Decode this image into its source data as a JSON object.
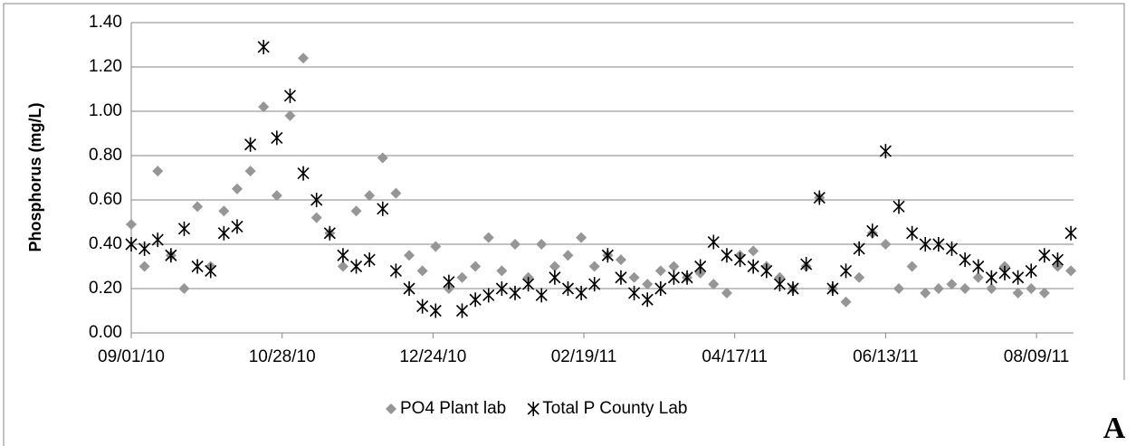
{
  "chart_data": {
    "type": "scatter",
    "ylabel": "Phosphorus (mg/L)",
    "x": [
      "09/01/10",
      "09/06/10",
      "09/11/10",
      "09/16/10",
      "09/21/10",
      "09/26/10",
      "10/01/10",
      "10/06/10",
      "10/11/10",
      "10/16/10",
      "10/21/10",
      "10/26/10",
      "10/31/10",
      "11/05/10",
      "11/10/10",
      "11/15/10",
      "11/20/10",
      "11/25/10",
      "11/30/10",
      "12/05/10",
      "12/10/10",
      "12/15/10",
      "12/20/10",
      "12/25/10",
      "12/30/10",
      "01/04/11",
      "01/09/11",
      "01/14/11",
      "01/19/11",
      "01/24/11",
      "01/29/11",
      "02/03/11",
      "02/08/11",
      "02/13/11",
      "02/18/11",
      "02/23/11",
      "02/28/11",
      "03/05/11",
      "03/10/11",
      "03/15/11",
      "03/20/11",
      "03/25/11",
      "03/30/11",
      "04/04/11",
      "04/09/11",
      "04/14/11",
      "04/19/11",
      "04/24/11",
      "04/29/11",
      "05/04/11",
      "05/09/11",
      "05/14/11",
      "05/19/11",
      "05/24/11",
      "05/29/11",
      "06/03/11",
      "06/08/11",
      "06/13/11",
      "06/18/11",
      "06/23/11",
      "06/28/11",
      "07/03/11",
      "07/08/11",
      "07/13/11",
      "07/18/11",
      "07/23/11",
      "07/28/11",
      "08/02/11",
      "08/07/11",
      "08/12/11",
      "08/17/11",
      "08/22/11"
    ],
    "series": [
      {
        "name": "PO4 Plant lab",
        "color": "#969696",
        "marker": "diamond",
        "values": [
          0.49,
          0.3,
          0.73,
          0.35,
          0.2,
          0.57,
          0.3,
          0.55,
          0.65,
          0.73,
          1.02,
          0.62,
          0.98,
          1.24,
          0.52,
          0.45,
          0.3,
          0.55,
          0.62,
          0.79,
          0.63,
          0.35,
          0.28,
          0.39,
          0.2,
          0.25,
          0.3,
          0.43,
          0.28,
          0.4,
          0.25,
          0.4,
          0.3,
          0.35,
          0.43,
          0.3,
          0.35,
          0.33,
          0.25,
          0.22,
          0.28,
          0.3,
          0.25,
          0.27,
          0.22,
          0.18,
          0.35,
          0.37,
          0.3,
          0.25,
          0.2,
          0.3,
          0.61,
          0.2,
          0.14,
          0.25,
          0.45,
          0.4,
          0.2,
          0.3,
          0.18,
          0.2,
          0.22,
          0.2,
          0.25,
          0.2,
          0.3,
          0.18,
          0.2,
          0.18,
          0.3,
          0.28
        ]
      },
      {
        "name": "Total P County Lab",
        "color": "#000000",
        "marker": "asterisk",
        "values": [
          0.4,
          0.38,
          0.42,
          0.35,
          0.47,
          0.3,
          0.28,
          0.45,
          0.48,
          0.85,
          1.29,
          0.88,
          1.07,
          0.72,
          0.6,
          0.45,
          0.35,
          0.3,
          0.33,
          0.56,
          0.28,
          0.2,
          0.12,
          0.1,
          0.23,
          0.1,
          0.15,
          0.17,
          0.2,
          0.18,
          0.22,
          0.17,
          0.25,
          0.2,
          0.18,
          0.22,
          0.35,
          0.25,
          0.18,
          0.15,
          0.2,
          0.25,
          0.25,
          0.3,
          0.41,
          0.35,
          0.33,
          0.3,
          0.28,
          0.22,
          0.2,
          0.31,
          0.61,
          0.2,
          0.28,
          0.38,
          0.46,
          0.82,
          0.57,
          0.45,
          0.4,
          0.4,
          0.38,
          0.33,
          0.3,
          0.25,
          0.27,
          0.25,
          0.28,
          0.35,
          0.33,
          0.45
        ]
      }
    ],
    "xlim": [
      "09/01/10",
      "08/23/11"
    ],
    "xticks": [
      "09/01/10",
      "10/28/10",
      "12/24/10",
      "02/19/11",
      "04/17/11",
      "06/13/11",
      "08/09/11"
    ],
    "ylim": [
      0,
      1.4
    ],
    "yticks": [
      {
        "value": 0,
        "label": "0.00"
      },
      {
        "value": 0.2,
        "label": "0.20"
      },
      {
        "value": 0.4,
        "label": "0.40"
      },
      {
        "value": 0.6,
        "label": "0.60"
      },
      {
        "value": 0.8,
        "label": "0.80"
      },
      {
        "value": 1,
        "label": "1.00"
      },
      {
        "value": 1.2,
        "label": "1.20"
      },
      {
        "value": 1.4,
        "label": "1.40"
      }
    ],
    "grid": true,
    "legend": "bottom"
  },
  "panel_label": "A"
}
